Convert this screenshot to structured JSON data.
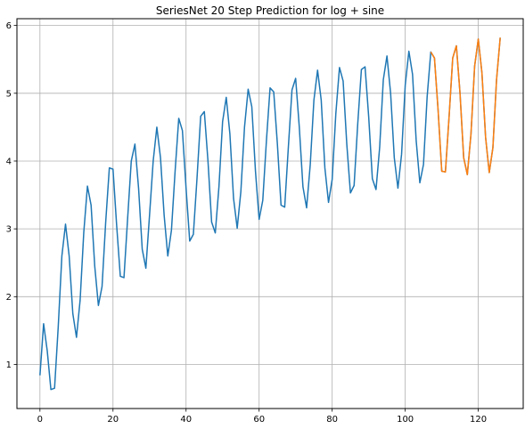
{
  "chart_data": {
    "type": "line",
    "title": "SeriesNet 20 Step Prediction for log + sine",
    "xlabel": "",
    "ylabel": "",
    "xlim": [
      -6.3,
      132.3
    ],
    "ylim": [
      0.35,
      6.1
    ],
    "xticks": [
      0,
      20,
      40,
      60,
      80,
      100,
      120
    ],
    "yticks": [
      1,
      2,
      3,
      4,
      5,
      6
    ],
    "grid": true,
    "series": [
      {
        "color": "#1f77b4",
        "x": [
          0,
          1,
          2,
          3,
          4,
          5,
          6,
          7,
          8,
          9,
          10,
          11,
          12,
          13,
          14,
          15,
          16,
          17,
          18,
          19,
          20,
          21,
          22,
          23,
          24,
          25,
          26,
          27,
          28,
          29,
          30,
          31,
          32,
          33,
          34,
          35,
          36,
          37,
          38,
          39,
          40,
          41,
          42,
          43,
          44,
          45,
          46,
          47,
          48,
          49,
          50,
          51,
          52,
          53,
          54,
          55,
          56,
          57,
          58,
          59,
          60,
          61,
          62,
          63,
          64,
          65,
          66,
          67,
          68,
          69,
          70,
          71,
          72,
          73,
          74,
          75,
          76,
          77,
          78,
          79,
          80,
          81,
          82,
          83,
          84,
          85,
          86,
          87,
          88,
          89,
          90,
          91,
          92,
          93,
          94,
          95,
          96,
          97,
          98,
          99,
          100,
          101,
          102,
          103,
          104,
          105,
          106,
          107,
          108,
          109,
          110,
          111,
          112,
          113,
          114,
          115,
          116,
          117,
          118,
          119,
          120,
          121,
          122,
          123,
          124,
          125,
          126
        ],
        "values": [
          0.84,
          1.6,
          1.2,
          0.63,
          0.65,
          1.55,
          2.6,
          3.07,
          2.6,
          1.75,
          1.4,
          1.95,
          2.95,
          3.63,
          3.35,
          2.45,
          1.87,
          2.15,
          3.1,
          3.9,
          3.88,
          3.05,
          2.3,
          2.28,
          3.15,
          4.0,
          4.25,
          3.6,
          2.7,
          2.42,
          3.2,
          4.0,
          4.5,
          4.05,
          3.2,
          2.6,
          2.98,
          3.85,
          4.63,
          4.45,
          3.6,
          2.82,
          2.92,
          3.75,
          4.66,
          4.73,
          4.0,
          3.1,
          2.94,
          3.62,
          4.58,
          4.94,
          4.4,
          3.45,
          3.01,
          3.55,
          4.5,
          5.06,
          4.8,
          3.85,
          3.14,
          3.42,
          4.3,
          5.08,
          5.02,
          4.25,
          3.35,
          3.32,
          4.2,
          5.05,
          5.22,
          4.5,
          3.62,
          3.31,
          3.95,
          4.9,
          5.34,
          4.9,
          3.9,
          3.39,
          3.73,
          4.7,
          5.38,
          5.18,
          4.25,
          3.53,
          3.64,
          4.55,
          5.35,
          5.39,
          4.65,
          3.74,
          3.58,
          4.2,
          5.2,
          5.55,
          5.0,
          4.05,
          3.6,
          4.1,
          5.12,
          5.62,
          5.28,
          4.3,
          3.68,
          3.95,
          4.95,
          5.61,
          5.52,
          4.75,
          3.85,
          3.84,
          4.65,
          5.52,
          5.7,
          5.0,
          4.05,
          3.8,
          4.4,
          5.4,
          5.8,
          5.3,
          4.35,
          3.83,
          4.2,
          5.2,
          5.82
        ]
      },
      {
        "color": "#ff7f0e",
        "x": [
          107,
          108,
          109,
          110,
          111,
          112,
          113,
          114,
          115,
          116,
          117,
          118,
          119,
          120,
          121,
          122,
          123,
          124,
          125,
          126
        ],
        "values": [
          5.61,
          5.52,
          4.75,
          3.85,
          3.84,
          4.65,
          5.52,
          5.7,
          5.0,
          4.05,
          3.8,
          4.4,
          5.4,
          5.8,
          5.3,
          4.35,
          3.83,
          4.2,
          5.2,
          5.82
        ]
      }
    ]
  }
}
